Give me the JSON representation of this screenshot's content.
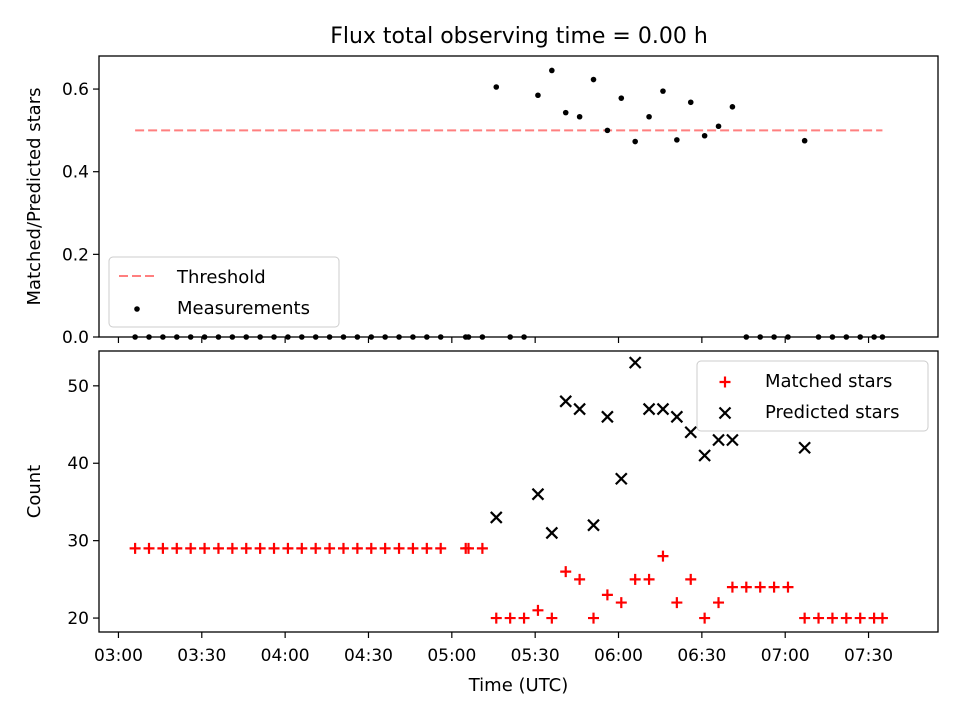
{
  "figure_title": "Flux total observing time = 0.00 h",
  "chart_data": [
    {
      "type": "scatter",
      "ylabel": "Matched/Predicted stars",
      "xlabel": "",
      "x_unit": "time UTC",
      "xlim": [
        "02:53",
        "07:55"
      ],
      "ylim": [
        0,
        0.68
      ],
      "yticks": [
        0.0,
        0.2,
        0.4,
        0.6
      ],
      "ytick_labels": [
        "0.0",
        "0.2",
        "0.4",
        "0.6"
      ],
      "xtick_labels_visible": false,
      "legend_position": "lower-left",
      "series": [
        {
          "name": "Threshold",
          "style": "dashed-line",
          "color": "#ff7f7f",
          "x": [
            "03:06",
            "07:35"
          ],
          "y": [
            0.5,
            0.5
          ]
        },
        {
          "name": "Measurements",
          "style": "dot",
          "color": "#000000",
          "x": [
            "03:06",
            "03:11",
            "03:16",
            "03:21",
            "03:26",
            "03:31",
            "03:36",
            "03:41",
            "03:46",
            "03:51",
            "03:56",
            "04:01",
            "04:06",
            "04:11",
            "04:16",
            "04:21",
            "04:26",
            "04:31",
            "04:36",
            "04:41",
            "04:46",
            "04:51",
            "04:56",
            "05:05",
            "05:06",
            "05:11",
            "05:16",
            "05:21",
            "05:26",
            "05:31",
            "05:36",
            "05:41",
            "05:46",
            "05:51",
            "05:56",
            "06:01",
            "06:06",
            "06:11",
            "06:16",
            "06:21",
            "06:26",
            "06:31",
            "06:36",
            "06:41",
            "06:46",
            "06:51",
            "06:56",
            "07:01",
            "07:07",
            "07:12",
            "07:17",
            "07:22",
            "07:27",
            "07:32",
            "07:35"
          ],
          "y": [
            0,
            0,
            0,
            0,
            0,
            0,
            0,
            0,
            0,
            0,
            0,
            0,
            0,
            0,
            0,
            0,
            0,
            0,
            0,
            0,
            0,
            0,
            0,
            0,
            0,
            0,
            0.605,
            0,
            0,
            0.585,
            0.645,
            0.543,
            0.533,
            0.623,
            0.5,
            0.578,
            0.473,
            0.533,
            0.595,
            0.477,
            0.568,
            0.487,
            0.51,
            0.557,
            0,
            0,
            0,
            0,
            0.475,
            0,
            0,
            0,
            0,
            0,
            0
          ]
        }
      ]
    },
    {
      "type": "scatter",
      "ylabel": "Count",
      "xlabel": "Time (UTC)",
      "x_unit": "time UTC",
      "xlim": [
        "02:53",
        "07:55"
      ],
      "ylim": [
        18.2,
        54.5
      ],
      "yticks": [
        20,
        30,
        40,
        50
      ],
      "ytick_labels": [
        "20",
        "30",
        "40",
        "50"
      ],
      "xticks": [
        "03:00",
        "03:30",
        "04:00",
        "04:30",
        "05:00",
        "05:30",
        "06:00",
        "06:30",
        "07:00",
        "07:30"
      ],
      "xtick_labels": [
        "03:00",
        "03:30",
        "04:00",
        "04:30",
        "05:00",
        "05:30",
        "06:00",
        "06:30",
        "07:00",
        "07:30"
      ],
      "legend_position": "upper-right",
      "series": [
        {
          "name": "Matched stars",
          "marker": "plus",
          "color": "#ff0000",
          "x": [
            "03:06",
            "03:11",
            "03:16",
            "03:21",
            "03:26",
            "03:31",
            "03:36",
            "03:41",
            "03:46",
            "03:51",
            "03:56",
            "04:01",
            "04:06",
            "04:11",
            "04:16",
            "04:21",
            "04:26",
            "04:31",
            "04:36",
            "04:41",
            "04:46",
            "04:51",
            "04:56",
            "05:05",
            "05:06",
            "05:11",
            "05:16",
            "05:21",
            "05:26",
            "05:31",
            "05:36",
            "05:41",
            "05:46",
            "05:51",
            "05:56",
            "06:01",
            "06:06",
            "06:11",
            "06:16",
            "06:21",
            "06:26",
            "06:31",
            "06:36",
            "06:41",
            "06:46",
            "06:51",
            "06:56",
            "07:01",
            "07:07",
            "07:12",
            "07:17",
            "07:22",
            "07:27",
            "07:32",
            "07:35"
          ],
          "y": [
            29,
            29,
            29,
            29,
            29,
            29,
            29,
            29,
            29,
            29,
            29,
            29,
            29,
            29,
            29,
            29,
            29,
            29,
            29,
            29,
            29,
            29,
            29,
            29,
            29,
            29,
            20,
            20,
            20,
            21,
            20,
            26,
            25,
            20,
            23,
            22,
            25,
            25,
            28,
            22,
            25,
            20,
            22,
            24,
            24,
            24,
            24,
            24,
            20,
            20,
            20,
            20,
            20,
            20,
            20
          ]
        },
        {
          "name": "Predicted stars",
          "marker": "x",
          "color": "#000000",
          "x": [
            "05:16",
            "05:31",
            "05:36",
            "05:41",
            "05:46",
            "05:51",
            "05:56",
            "06:01",
            "06:06",
            "06:11",
            "06:16",
            "06:21",
            "06:26",
            "06:31",
            "06:36",
            "06:41",
            "07:07"
          ],
          "y": [
            33,
            36,
            31,
            48,
            47,
            32,
            46,
            38,
            53,
            47,
            47,
            46,
            44,
            41,
            43,
            43,
            42
          ]
        }
      ]
    }
  ]
}
